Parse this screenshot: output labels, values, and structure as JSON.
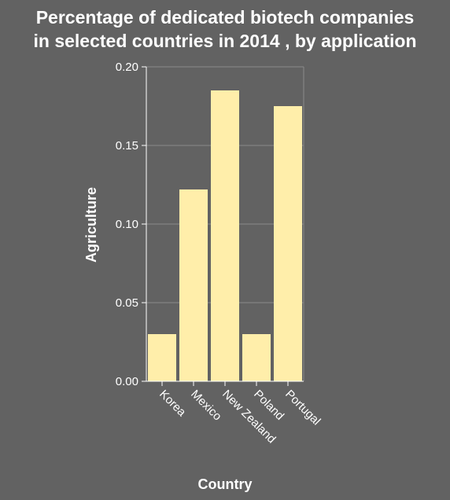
{
  "chart_data": {
    "type": "bar",
    "title_lines": [
      "Percentage of dedicated biotech companies",
      "in selected countries in 2014 , by application"
    ],
    "xlabel": "Country",
    "ylabel": "Agriculture",
    "categories": [
      "Korea",
      "Mexico",
      "New Zealand",
      "Poland",
      "Portugal"
    ],
    "values": [
      0.03,
      0.122,
      0.185,
      0.03,
      0.175
    ],
    "ylim": [
      0,
      0.2
    ],
    "yticks": [
      "0.00",
      "0.05",
      "0.10",
      "0.15",
      "0.20"
    ],
    "grid": true,
    "bar_color": "#ffeeaa",
    "background_color": "#626262",
    "grid_color": "#8a8a8a"
  }
}
